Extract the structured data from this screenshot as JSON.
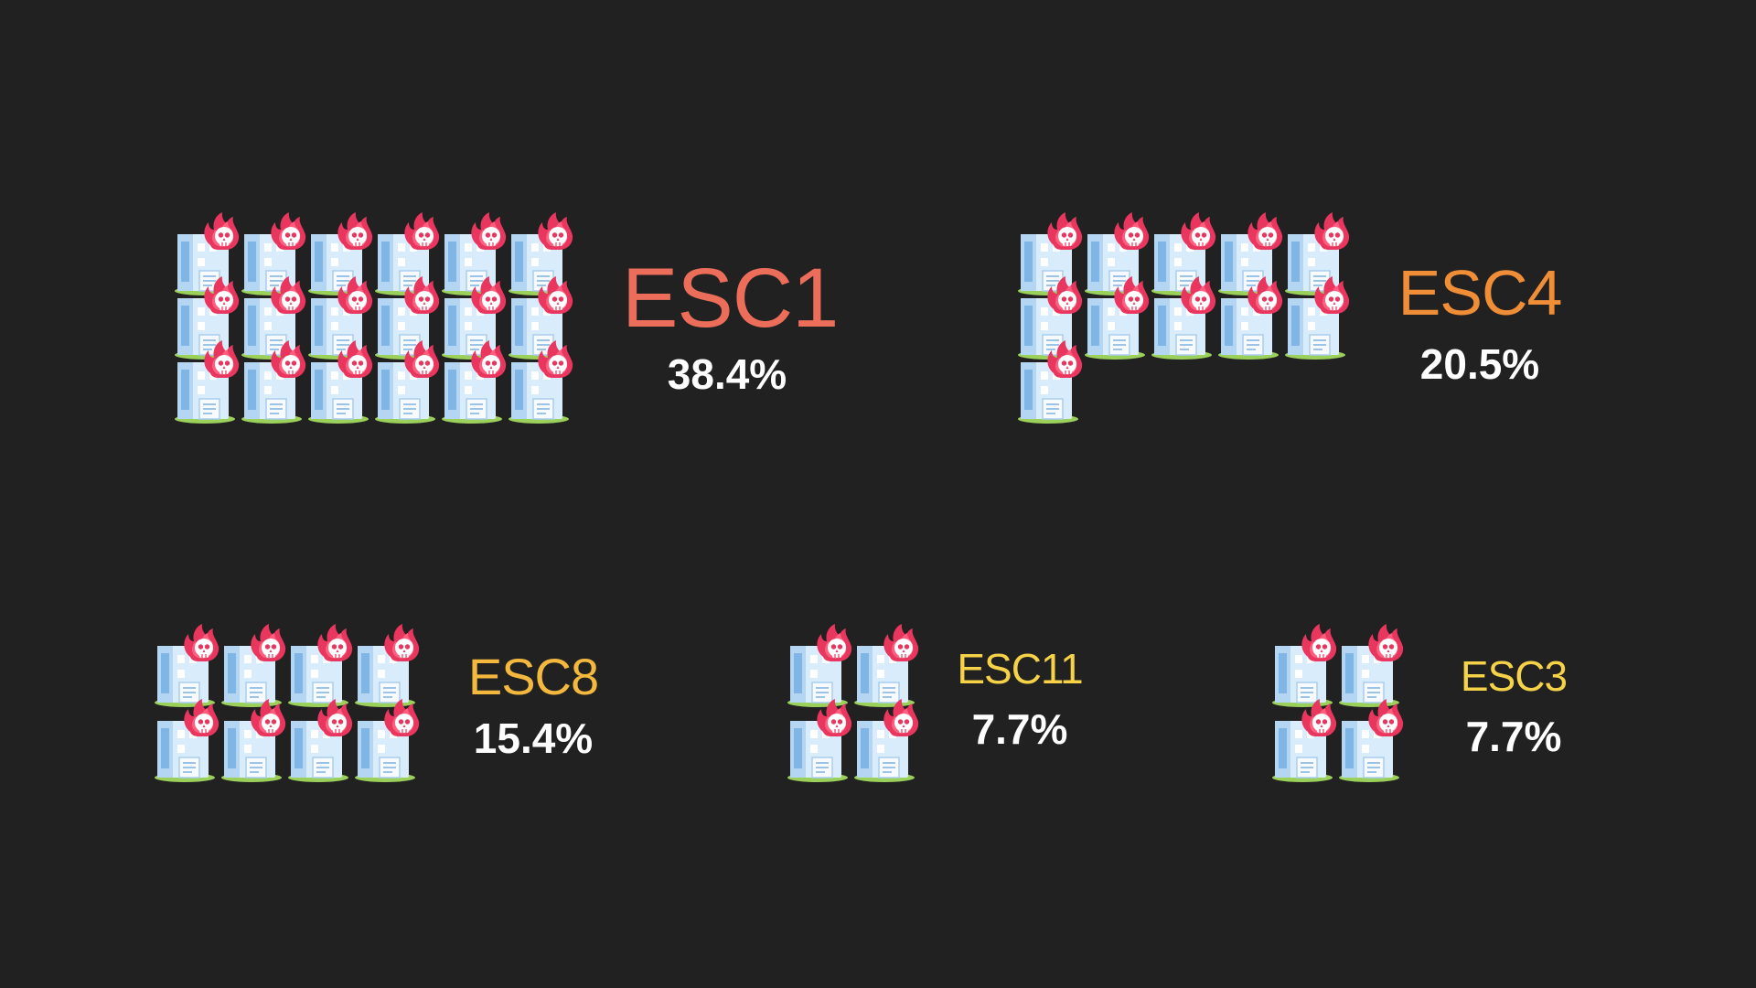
{
  "chart_data": {
    "type": "pictogram",
    "icon": "burning-building-skull-icon",
    "categories": [
      "ESC1",
      "ESC4",
      "ESC8",
      "ESC11",
      "ESC3"
    ],
    "series": [
      {
        "values": [
          38.4,
          20.5,
          15.4,
          7.7,
          7.7
        ],
        "icon_counts": [
          18,
          11,
          8,
          4,
          4
        ]
      }
    ],
    "items": [
      {
        "label": "ESC1",
        "value_label": "38.4%",
        "count": 18,
        "color": "#ec6e5a"
      },
      {
        "label": "ESC4",
        "value_label": "20.5%",
        "count": 11,
        "color": "#f08e38"
      },
      {
        "label": "ESC8",
        "value_label": "15.4%",
        "count": 8,
        "color": "#f4b83e"
      },
      {
        "label": "ESC11",
        "value_label": "7.7%",
        "count": 4,
        "color": "#f5d247"
      },
      {
        "label": "ESC3",
        "value_label": "7.7%",
        "count": 4,
        "color": "#f5d247"
      }
    ]
  },
  "theme": {
    "background": "#212121",
    "percent_color": "#ffffff"
  }
}
